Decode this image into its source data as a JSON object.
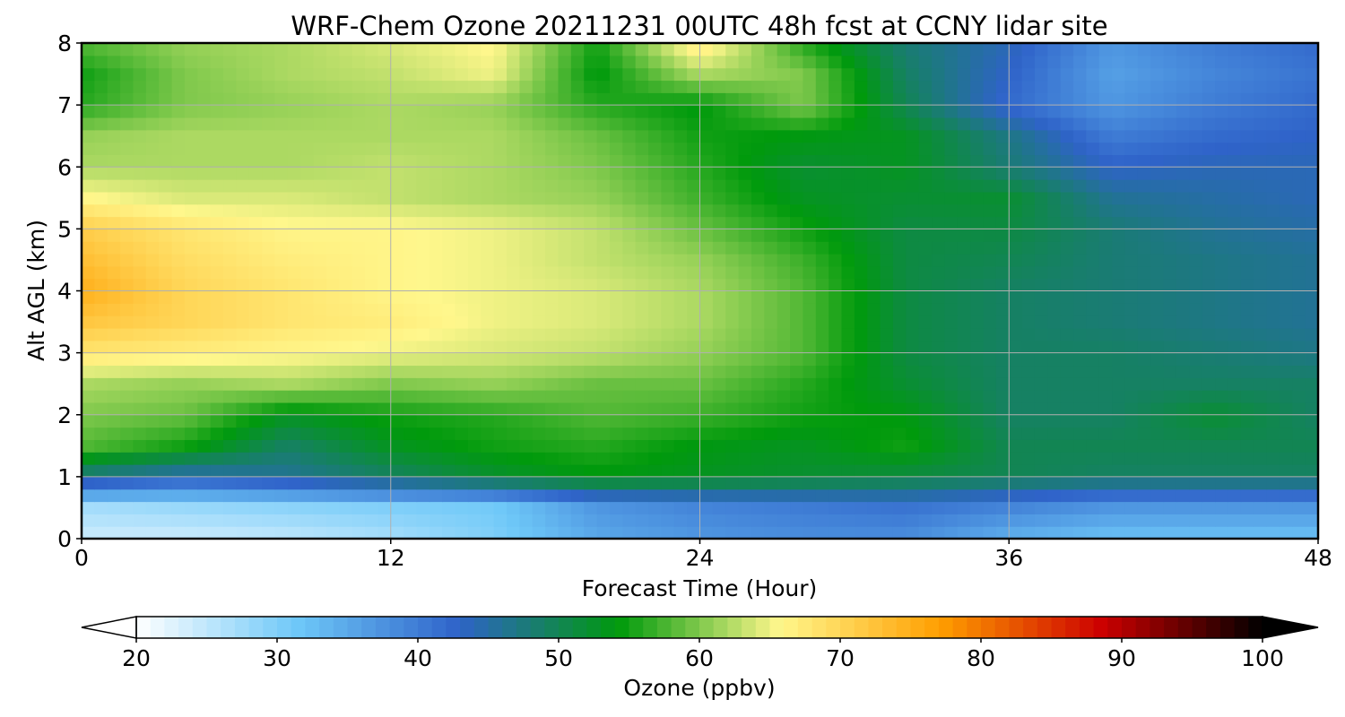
{
  "chart_data": {
    "type": "heatmap",
    "title": "WRF-Chem Ozone  20211231 00UTC 48h fcst at CCNY lidar site",
    "xlabel": "Forecast Time (Hour)",
    "ylabel": "Alt AGL (km)",
    "xlim": [
      0,
      48
    ],
    "ylim": [
      0,
      8
    ],
    "x_ticks": [
      0,
      12,
      24,
      36,
      48
    ],
    "y_ticks": [
      0,
      1,
      2,
      3,
      4,
      5,
      6,
      7,
      8
    ],
    "grid": true,
    "colorbar": {
      "label": "Ozone  (ppbv)",
      "range": [
        20,
        100
      ],
      "ticks": [
        20,
        30,
        40,
        50,
        60,
        70,
        80,
        90,
        100
      ],
      "extend": "both",
      "colors": [
        "#ffffff",
        "#6ec8f8",
        "#2f63c9",
        "#009a0c",
        "#fff78c",
        "#ff9e00",
        "#cc0000",
        "#000000"
      ]
    },
    "x": [
      0,
      4,
      8,
      12,
      16,
      20,
      24,
      28,
      32,
      36,
      40,
      44,
      48
    ],
    "y": [
      0,
      0.5,
      1,
      1.5,
      2,
      2.5,
      3,
      3.5,
      4,
      4.5,
      5,
      5.5,
      6,
      6.5,
      7,
      7.5,
      8
    ],
    "z": [
      [
        24,
        24,
        25,
        27,
        30,
        35,
        37,
        38,
        38,
        34,
        32,
        32,
        32
      ],
      [
        27,
        28,
        29,
        30,
        31,
        37,
        39,
        40,
        41,
        39,
        37,
        37,
        37
      ],
      [
        47,
        44,
        46,
        49,
        52,
        54,
        53,
        52,
        51,
        50,
        49,
        49,
        49
      ],
      [
        58,
        55,
        49,
        53,
        55,
        56,
        54,
        53,
        55,
        50,
        50,
        50,
        50
      ],
      [
        60,
        59,
        53,
        55,
        56,
        58,
        57,
        55,
        54,
        49,
        49,
        52,
        49
      ],
      [
        62,
        61,
        62,
        60,
        61,
        59,
        59,
        56,
        52,
        49,
        49,
        49,
        49
      ],
      [
        68,
        67,
        66,
        65,
        64,
        63,
        61,
        58,
        51,
        49,
        49,
        48,
        47
      ],
      [
        72,
        70,
        68,
        67,
        65,
        64,
        62,
        58,
        51,
        49,
        48,
        47,
        46
      ],
      [
        75,
        70,
        68,
        66,
        65,
        64,
        62,
        58,
        51,
        49,
        48,
        47,
        46
      ],
      [
        73,
        69,
        67,
        66,
        65,
        63,
        61,
        57,
        51,
        50,
        48,
        47,
        46
      ],
      [
        71,
        68,
        66,
        66,
        65,
        63,
        59,
        55,
        51,
        51,
        48,
        46,
        45
      ],
      [
        66,
        64,
        64,
        63,
        62,
        61,
        57,
        53,
        52,
        52,
        46,
        45,
        44
      ],
      [
        62,
        62,
        62,
        63,
        62,
        60,
        56,
        52,
        53,
        48,
        43,
        44,
        44
      ],
      [
        61,
        62,
        62,
        62,
        62,
        59,
        55,
        54,
        53,
        47,
        40,
        42,
        43
      ],
      [
        56,
        60,
        61,
        62,
        61,
        56,
        54,
        60,
        50,
        42,
        37,
        40,
        42
      ],
      [
        55,
        60,
        62,
        63,
        65,
        54,
        62,
        60,
        49,
        43,
        36,
        39,
        41
      ],
      [
        58,
        61,
        62,
        64,
        66,
        55,
        68,
        56,
        48,
        44,
        37,
        40,
        42
      ]
    ]
  }
}
